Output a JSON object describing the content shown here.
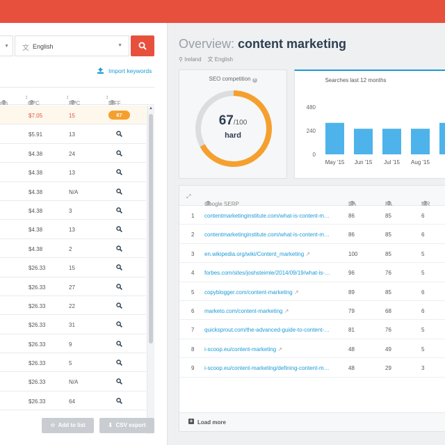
{
  "colors": {
    "accent": "#e8503e",
    "link": "#1b9ad6",
    "badge": "#f5a02e",
    "bar": "#4db3ea"
  },
  "search": {
    "language": "English"
  },
  "import_label": "Import keywords",
  "keyword_table": {
    "headers": {
      "search": "rch",
      "cpc": "CPC",
      "ppc": "PPC",
      "diff": "DIFF"
    },
    "rows": [
      {
        "cpc": "$7.05",
        "ppc": "15",
        "diff": "67"
      },
      {
        "cpc": "$5.91",
        "ppc": "13"
      },
      {
        "cpc": "$4.38",
        "ppc": "24"
      },
      {
        "cpc": "$4.38",
        "ppc": "13"
      },
      {
        "cpc": "$4.38",
        "ppc": "N/A"
      },
      {
        "cpc": "$4.38",
        "ppc": "3"
      },
      {
        "cpc": "$4.38",
        "ppc": "13"
      },
      {
        "cpc": "$4.38",
        "ppc": "2"
      },
      {
        "cpc": "$26.33",
        "ppc": "15"
      },
      {
        "cpc": "$26.33",
        "ppc": "27"
      },
      {
        "cpc": "$26.33",
        "ppc": "22"
      },
      {
        "cpc": "$26.33",
        "ppc": "31"
      },
      {
        "cpc": "$26.33",
        "ppc": "9"
      },
      {
        "cpc": "$26.33",
        "ppc": "5"
      },
      {
        "cpc": "$26.33",
        "ppc": "N/A"
      },
      {
        "cpc": "$26.33",
        "ppc": "64"
      }
    ]
  },
  "buttons": {
    "add_to_list": "Add to list",
    "csv_export": "CSV export"
  },
  "overview": {
    "prefix": "Overview:",
    "keyword": "content marketing",
    "location": "Ireland",
    "language": "English"
  },
  "seo": {
    "title": "SEO competition",
    "score": "67",
    "max": "/100",
    "label": "hard",
    "fraction": 0.67
  },
  "trend": {
    "title": "Searches last 12 months"
  },
  "chart_data": {
    "type": "bar",
    "title": "Searches last 12 months",
    "categories": [
      "May '15",
      "Jun '15",
      "Jul '15",
      "Aug '15",
      "Se"
    ],
    "values": [
      320,
      260,
      260,
      260,
      320
    ],
    "yticks": [
      "480",
      "240",
      "0"
    ],
    "ylim": [
      0,
      480
    ],
    "grid": false
  },
  "serp": {
    "headers": {
      "serp": "Google SERP",
      "da": "DA",
      "pa": "PA",
      "mr": "MR"
    },
    "rows": [
      {
        "rank": "1",
        "url": "contentmarketinginstitute.com/what-is-content-m…",
        "da": "86",
        "pa": "85",
        "mr": "6"
      },
      {
        "rank": "2",
        "url": "contentmarketinginstitute.com/what-is-content-m…",
        "da": "86",
        "pa": "85",
        "mr": "6"
      },
      {
        "rank": "3",
        "url": "en.wikipedia.org/wiki/Content_marketing",
        "da": "100",
        "pa": "85",
        "mr": "5"
      },
      {
        "rank": "4",
        "url": "forbes.com/sites/joshsteimle/2014/09/19/what-is-…",
        "da": "96",
        "pa": "76",
        "mr": "5"
      },
      {
        "rank": "5",
        "url": "copyblogger.com/content-marketing",
        "da": "89",
        "pa": "85",
        "mr": "6"
      },
      {
        "rank": "6",
        "url": "marketo.com/content-marketing",
        "da": "79",
        "pa": "68",
        "mr": "6"
      },
      {
        "rank": "7",
        "url": "quicksprout.com/the-advanced-guide-to-content-…",
        "da": "81",
        "pa": "76",
        "mr": "5"
      },
      {
        "rank": "8",
        "url": "i-scoop.eu/content-marketing",
        "da": "48",
        "pa": "49",
        "mr": "5"
      },
      {
        "rank": "9",
        "url": "i-scoop.eu/content-marketing/defining-content-m…",
        "da": "48",
        "pa": "29",
        "mr": "3"
      }
    ],
    "load_more": "Load more"
  }
}
